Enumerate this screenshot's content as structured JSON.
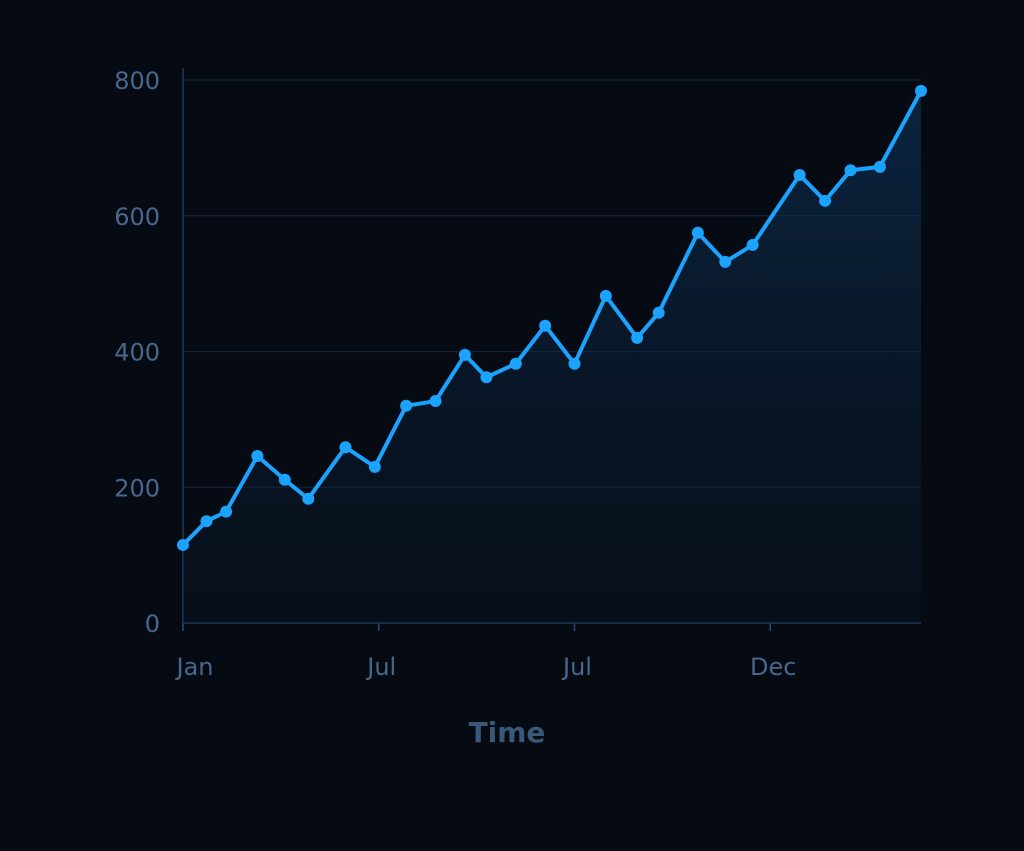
{
  "chart_data": {
    "type": "area",
    "x_label": "Time",
    "x": [
      0,
      0.12,
      0.22,
      0.38,
      0.52,
      0.64,
      0.83,
      0.98,
      1.14,
      1.29,
      1.44,
      1.55,
      1.7,
      1.85,
      2.0,
      2.16,
      2.32,
      2.43,
      2.63,
      2.77,
      2.91,
      3.15,
      3.28,
      3.41,
      3.56,
      3.77
    ],
    "values": [
      115,
      150,
      164,
      246,
      211,
      183,
      259,
      230,
      320,
      327,
      395,
      362,
      382,
      438,
      382,
      482,
      420,
      457,
      575,
      532,
      557,
      660,
      622,
      667,
      672,
      784
    ],
    "color": "#1aa3ff",
    "xlim": [
      0,
      3.77
    ],
    "xticks": [
      {
        "value": 0,
        "label": "Jan"
      },
      {
        "value": 1,
        "label": "Jul"
      },
      {
        "value": 2,
        "label": "Jul"
      },
      {
        "value": 3,
        "label": "Dec"
      }
    ],
    "ylim": [
      0,
      800
    ],
    "yticks": [
      0,
      200,
      400,
      600,
      800
    ],
    "grid": true
  }
}
